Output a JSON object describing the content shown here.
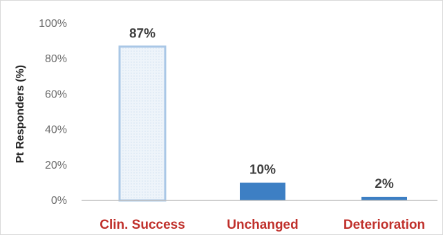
{
  "chart_data": {
    "type": "bar",
    "categories": [
      "Clin. Success",
      "Unchanged",
      "Deterioration"
    ],
    "values": [
      87,
      10,
      2
    ],
    "data_labels": [
      "87%",
      "10%",
      "2%"
    ],
    "title": "",
    "xlabel": "",
    "ylabel": "Pt Responders (%)",
    "ylim": [
      0,
      100
    ],
    "yticks": [
      0,
      20,
      40,
      60,
      80,
      100
    ],
    "ytick_labels": [
      "0%",
      "20%",
      "40%",
      "60%",
      "80%",
      "100%"
    ],
    "grid": false,
    "legend": "none",
    "colors": {
      "category_label": "#c0302b",
      "first_bar_fill": "#eef4fa",
      "first_bar_outline": "#a9c7e6",
      "bar_fill": "#3d7fc4",
      "axis_line": "#bfbfbf"
    }
  }
}
